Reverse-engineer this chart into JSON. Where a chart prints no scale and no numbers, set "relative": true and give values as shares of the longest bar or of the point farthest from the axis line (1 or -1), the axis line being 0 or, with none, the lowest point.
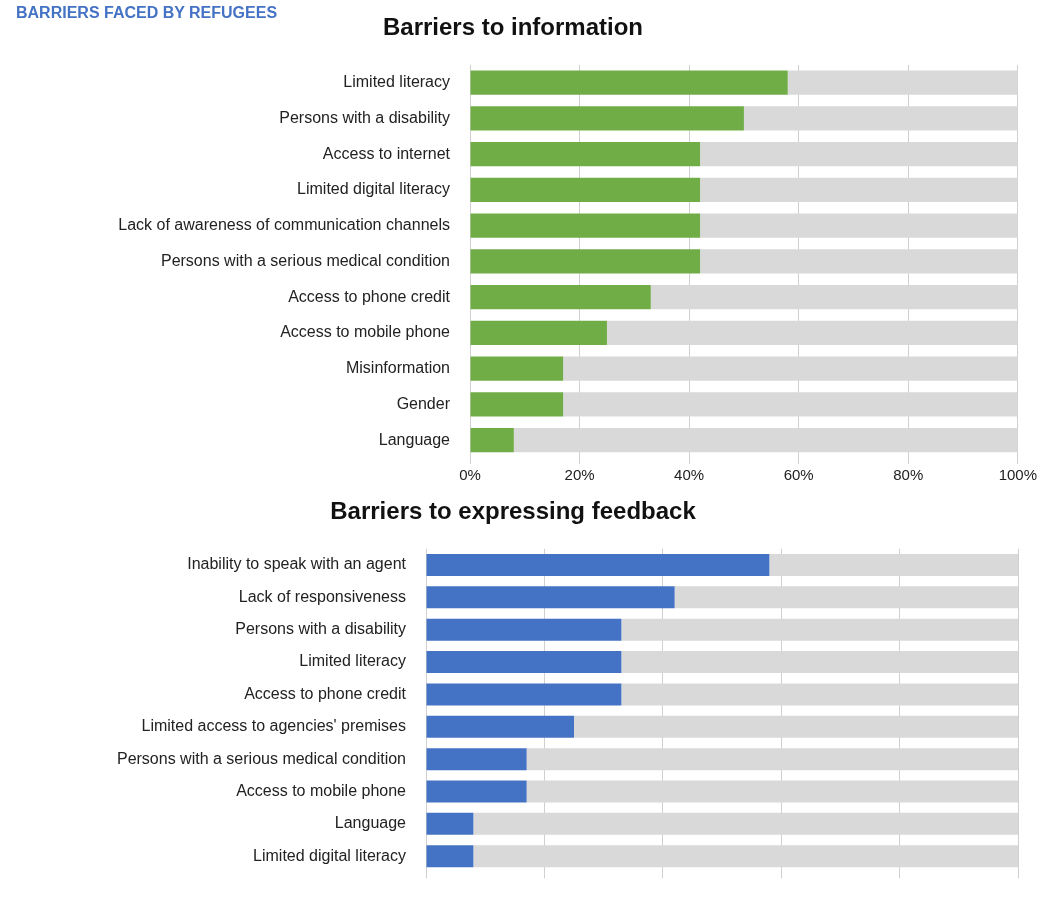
{
  "chart_data": [
    {
      "type": "bar",
      "title": "Barriers to information",
      "annotations": [
        "BARRIERS FACED BY REFUGEES"
      ],
      "orientation": "horizontal",
      "stacked": true,
      "grid": "x",
      "categories": [
        "Limited literacy",
        "Persons with a disability",
        "Access to internet",
        "Limited digital literacy",
        "Lack of awareness of communication channels",
        "Persons with a serious medical condition",
        "Access to phone credit",
        "Access to mobile phone",
        "Misinformation",
        "Gender",
        "Language"
      ],
      "series": [
        {
          "color": "#70ad47",
          "values": [
            58,
            50,
            42,
            42,
            42,
            42,
            33,
            25,
            17,
            17,
            8
          ]
        },
        {
          "color": "#d9d9d9",
          "values": [
            42,
            50,
            58,
            58,
            58,
            58,
            67,
            75,
            83,
            83,
            92
          ]
        }
      ],
      "xlim": [
        0,
        100
      ],
      "xticks": [
        {
          "value": 0,
          "label": "0%"
        },
        {
          "value": 20,
          "label": "20%"
        },
        {
          "value": 40,
          "label": "40%"
        },
        {
          "value": 60,
          "label": "60%"
        },
        {
          "value": 80,
          "label": "80%"
        },
        {
          "value": 100,
          "label": "100%"
        }
      ]
    },
    {
      "type": "bar",
      "title": "Barriers to expressing feedback",
      "orientation": "horizontal",
      "stacked": true,
      "relative": true,
      "grid": "x",
      "categories": [
        "Inability to speak with an agent",
        "Lack of responsiveness",
        "Persons with a disability",
        "Limited literacy",
        "Access to phone credit",
        "Limited access to agencies' premises",
        "Persons with a serious medical condition",
        "Access to mobile phone",
        "Language",
        "Limited digital literacy"
      ],
      "series": [
        {
          "color": "#4472c4",
          "values": [
            0.58,
            0.42,
            0.33,
            0.33,
            0.33,
            0.25,
            0.17,
            0.17,
            0.08,
            0.08
          ]
        },
        {
          "color": "#d9d9d9",
          "values": [
            0.42,
            0.58,
            0.67,
            0.67,
            0.67,
            0.75,
            0.83,
            0.83,
            0.92,
            0.92
          ]
        }
      ]
    }
  ]
}
